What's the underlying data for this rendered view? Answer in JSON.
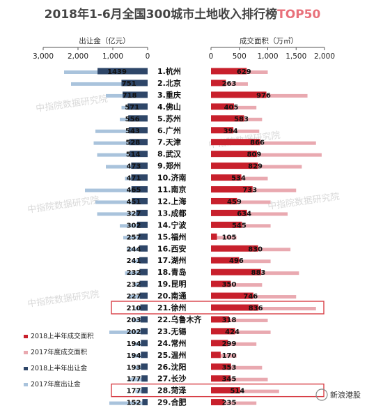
{
  "title_main": "2018年1-6月全国300城市土地收入排行榜",
  "title_accent": "TOP50",
  "watermark": "中指院数据研究院",
  "footer_logo": "新浪港股",
  "colors": {
    "title": "#444444",
    "accent": "#e8707a",
    "red_2018": "#c8202c",
    "pink_2017": "#e9a9b0",
    "navy_2018": "#2e4668",
    "lightblue_2017": "#a9c3dc",
    "highlight": "#d84048"
  },
  "chart_data": {
    "type": "bar",
    "title": "2018年1-6月全国300城市土地收入排行榜TOP50",
    "panels": [
      {
        "ylabel": "出让金（亿元）",
        "ticks": [
          3000,
          2000,
          1000,
          0
        ],
        "xlim": [
          0,
          3000
        ],
        "direction": "left"
      },
      {
        "ylabel": "成交面积（万㎡）",
        "ticks": [
          0,
          500,
          1000,
          1500,
          2000
        ],
        "xlim": [
          0,
          2000
        ],
        "direction": "right"
      }
    ],
    "legend": [
      {
        "label": "2018上半年成交面积",
        "color": "#c8202c"
      },
      {
        "label": "2017年度成交面积",
        "color": "#e9a9b0"
      },
      {
        "label": "2018上半年出让金",
        "color": "#2e4668"
      },
      {
        "label": "2017年度出让金",
        "color": "#a9c3dc"
      }
    ],
    "categories": [
      "1.杭州",
      "2.北京",
      "3.重庆",
      "4.佛山",
      "5.苏州",
      "6.广州",
      "7.天津",
      "8.武汉",
      "9.郑州",
      "10.济南",
      "11.南京",
      "12.上海",
      "13.成都",
      "14.宁波",
      "15.福州",
      "16.西安",
      "17.湖州",
      "18.青岛",
      "19.昆明",
      "20.南通",
      "21.徐州",
      "22.乌鲁木齐",
      "23.无锡",
      "24.常州",
      "25.温州",
      "26.沈阳",
      "27.长沙",
      "28.菏泽",
      "29.合肥"
    ],
    "series": [
      {
        "name": "2018上半年出让金",
        "values": [
          1439,
          751,
          718,
          571,
          556,
          543,
          528,
          514,
          473,
          471,
          465,
          451,
          327,
          302,
          257,
          244,
          241,
          232,
          232,
          227,
          210,
          203,
          202,
          194,
          194,
          193,
          177,
          177,
          152
        ]
      },
      {
        "name": "2017年度出让金",
        "values": [
          2400,
          2200,
          1200,
          750,
          800,
          1500,
          1550,
          1450,
          1200,
          650,
          1800,
          1500,
          1450,
          800,
          700,
          600,
          450,
          650,
          400,
          550,
          350,
          450,
          1100,
          400,
          450,
          400,
          550,
          350,
          1100
        ]
      },
      {
        "name": "2018上半年成交面积",
        "values": [
          629,
          263,
          976,
          405,
          583,
          394,
          866,
          809,
          829,
          534,
          733,
          459,
          634,
          545,
          105,
          830,
          496,
          883,
          350,
          746,
          836,
          318,
          424,
          299,
          170,
          353,
          345,
          514,
          235
        ]
      },
      {
        "name": "2017年度成交面积",
        "values": [
          1000,
          650,
          1700,
          800,
          900,
          850,
          1850,
          1950,
          1600,
          1000,
          1500,
          1050,
          1350,
          1050,
          450,
          1400,
          1050,
          1550,
          900,
          1500,
          1850,
          1000,
          1050,
          800,
          450,
          900,
          1000,
          1200,
          800
        ]
      }
    ],
    "highlighted": [
      "21.徐州",
      "28.菏泽"
    ]
  }
}
